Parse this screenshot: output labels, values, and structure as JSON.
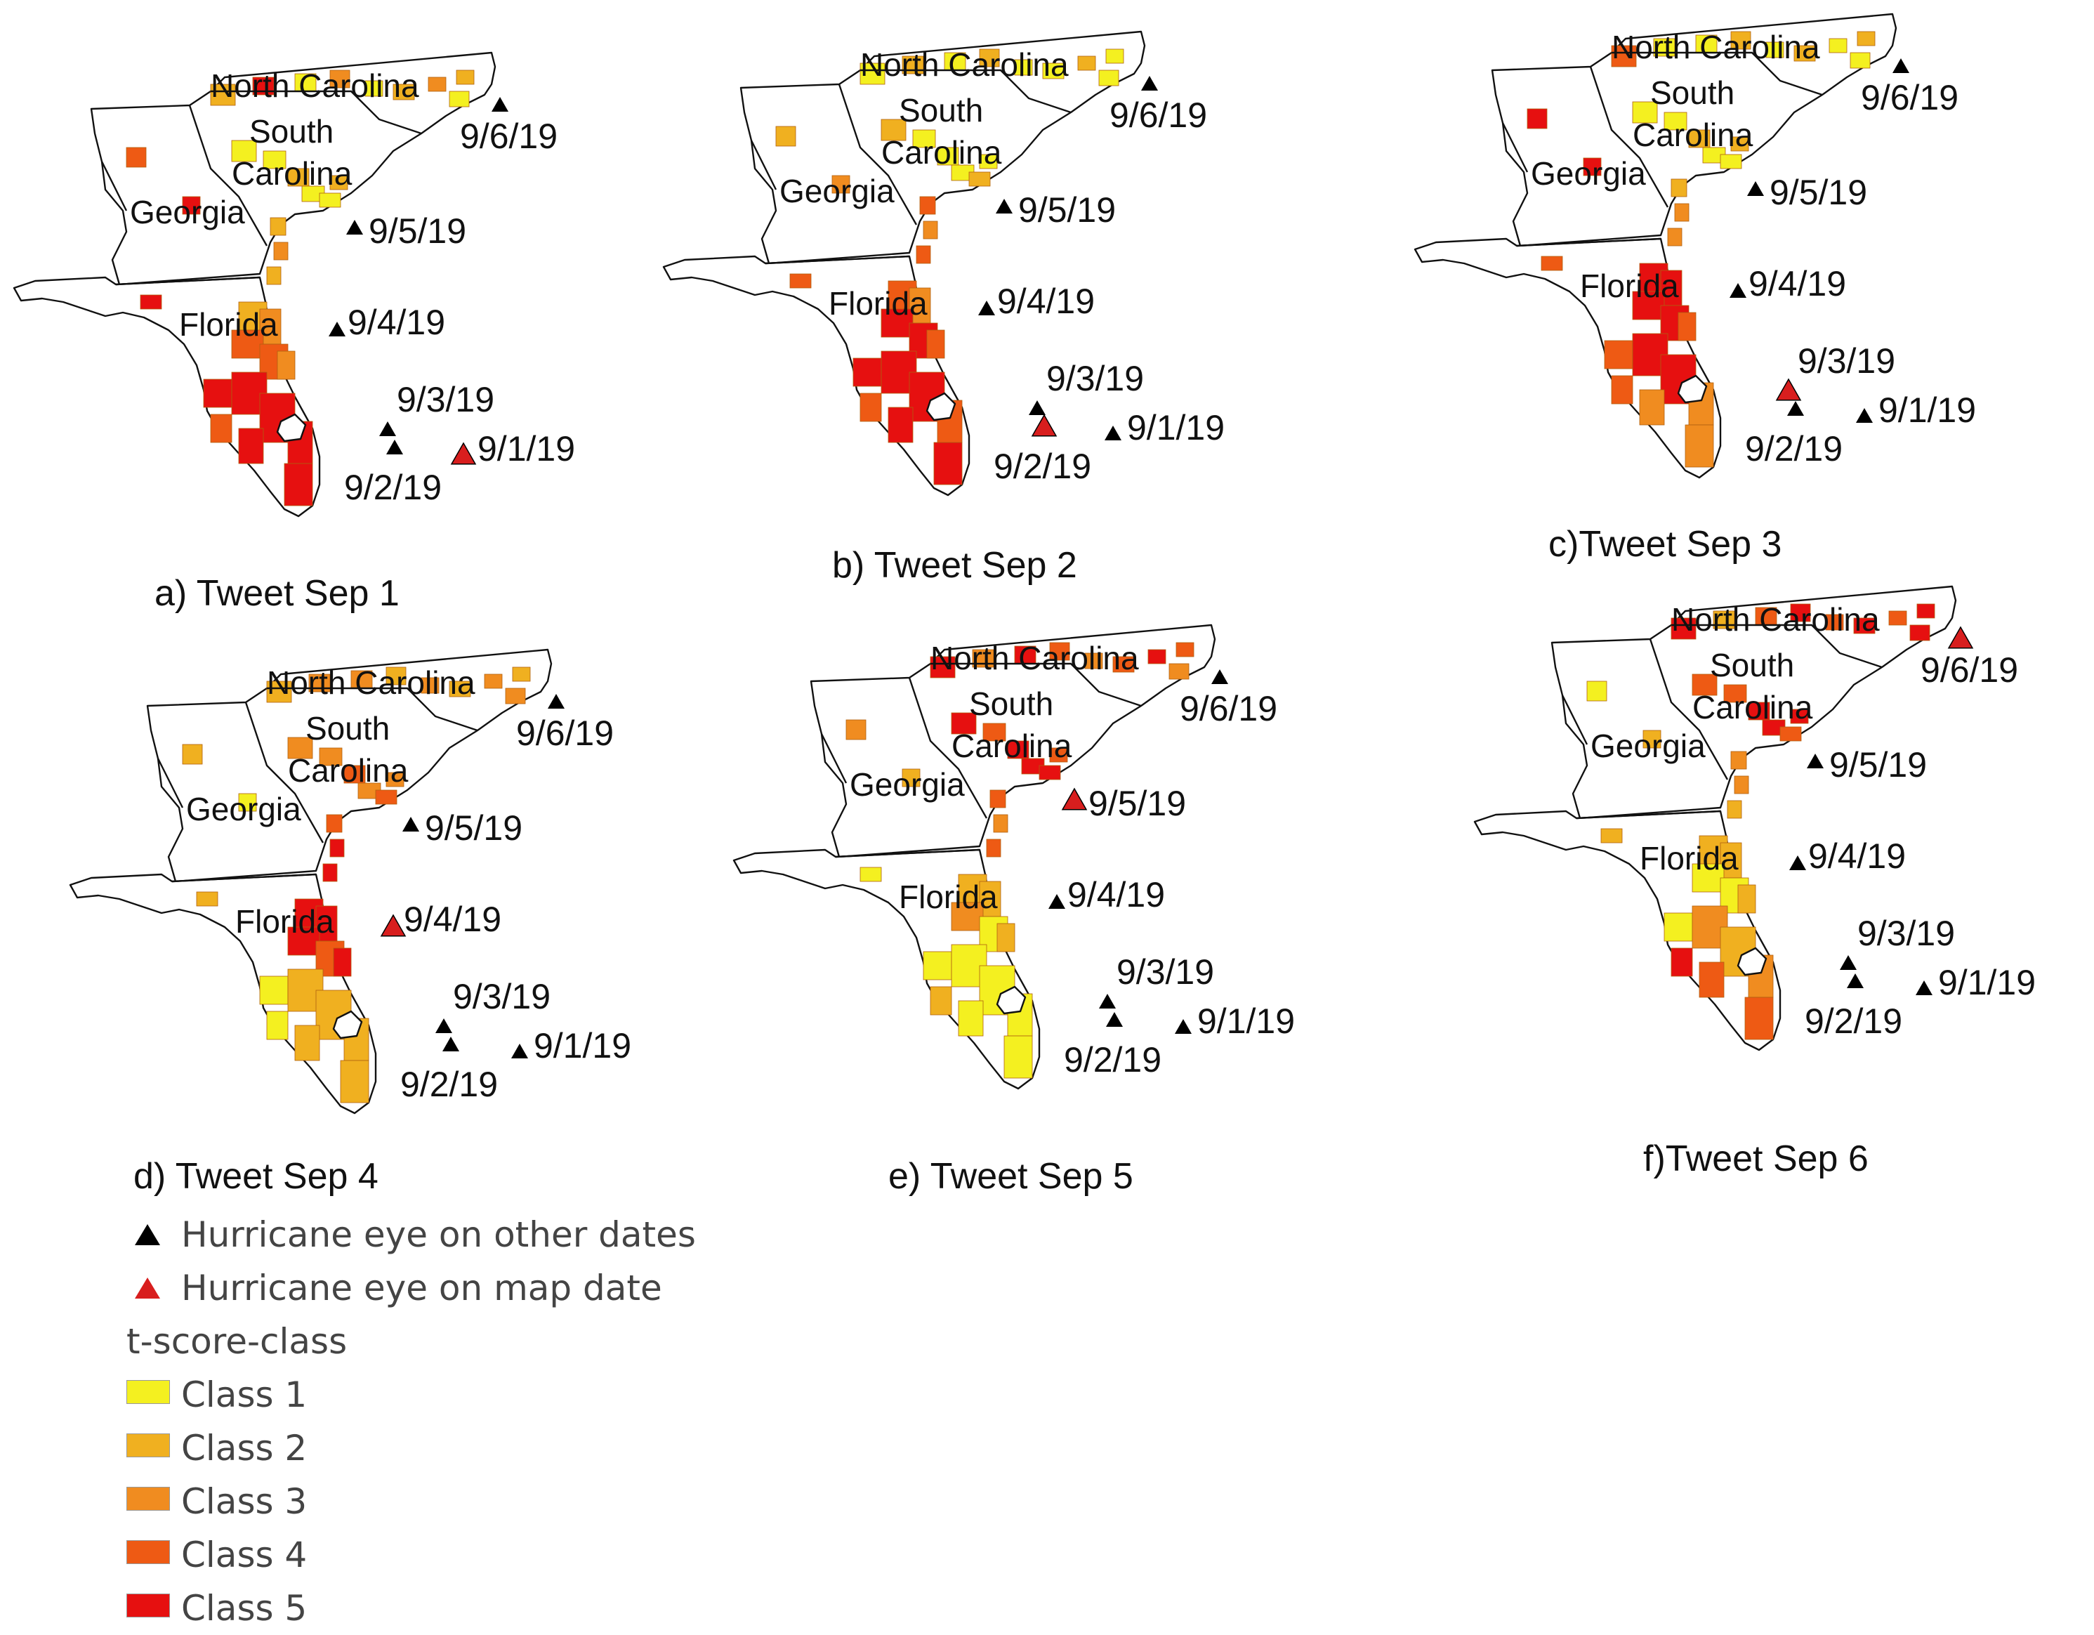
{
  "colors": {
    "class1": "#F4F020",
    "class2": "#F0B020",
    "class3": "#F08C20",
    "class4": "#EE5A14",
    "class5": "#E61010",
    "eye_other": "#000000",
    "eye_map": "#D81E1E"
  },
  "state_labels": {
    "nc": "North Carolina",
    "sc1": "South",
    "sc2": "Carolina",
    "ga": "Georgia",
    "fl": "Florida"
  },
  "panels": [
    {
      "caption": "a) Tweet Sep 1",
      "map_date": "9/1/19",
      "dates": {
        "d906": "9/6/19",
        "d905": "9/5/19",
        "d904": "9/4/19",
        "d903": "9/3/19",
        "d902": "9/2/19",
        "d901": "9/1/19"
      }
    },
    {
      "caption": "b) Tweet Sep 2",
      "map_date": "9/2/19",
      "dates": {
        "d906": "9/6/19",
        "d905": "9/5/19",
        "d904": "9/4/19",
        "d903": "9/3/19",
        "d902": "9/2/19",
        "d901": "9/1/19"
      }
    },
    {
      "caption": "c)Tweet Sep 3",
      "map_date": "9/3/19",
      "dates": {
        "d906": "9/6/19",
        "d905": "9/5/19",
        "d904": "9/4/19",
        "d903": "9/3/19",
        "d902": "9/2/19",
        "d901": "9/1/19"
      }
    },
    {
      "caption": "d) Tweet Sep 4",
      "map_date": "9/4/19",
      "dates": {
        "d906": "9/6/19",
        "d905": "9/5/19",
        "d904": "9/4/19",
        "d903": "9/3/19",
        "d902": "9/2/19",
        "d901": "9/1/19"
      }
    },
    {
      "caption": "e) Tweet Sep 5",
      "map_date": "9/5/19",
      "dates": {
        "d906": "9/6/19",
        "d905": "9/5/19",
        "d904": "9/4/19",
        "d903": "9/3/19",
        "d902": "9/2/19",
        "d901": "9/1/19"
      }
    },
    {
      "caption": "f)Tweet Sep 6",
      "map_date": "9/6/19",
      "dates": {
        "d906": "9/6/19",
        "d905": "9/5/19",
        "d904": "9/4/19",
        "d903": "9/3/19",
        "d902": "9/2/19",
        "d901": "9/1/19"
      }
    }
  ],
  "legend": {
    "eye_other": "Hurricane eye on other dates",
    "eye_map": "Hurricane eye on map date",
    "title": "t-score-class",
    "classes": [
      "Class 1",
      "Class 2",
      "Class 3",
      "Class 4",
      "Class 5"
    ]
  }
}
